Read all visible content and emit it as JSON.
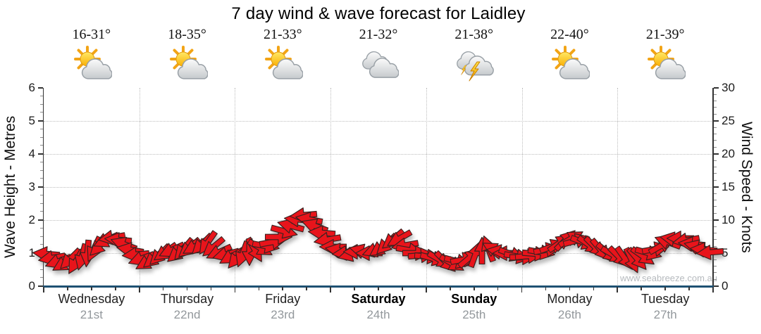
{
  "title": "7 day wind & wave forecast for Laidley",
  "watermark": "www.seabreeze.com.au",
  "days": [
    {
      "name": "Wednesday",
      "date": "21st",
      "temp": "16-31°",
      "icon": "partly-cloudy",
      "bold": false
    },
    {
      "name": "Thursday",
      "date": "22nd",
      "temp": "18-35°",
      "icon": "partly-cloudy",
      "bold": false
    },
    {
      "name": "Friday",
      "date": "23rd",
      "temp": "21-33°",
      "icon": "partly-cloudy",
      "bold": false
    },
    {
      "name": "Saturday",
      "date": "24th",
      "temp": "21-32°",
      "icon": "cloudy",
      "bold": true
    },
    {
      "name": "Sunday",
      "date": "25th",
      "temp": "21-38°",
      "icon": "storm",
      "bold": true
    },
    {
      "name": "Monday",
      "date": "26th",
      "temp": "22-40°",
      "icon": "partly-cloudy",
      "bold": false
    },
    {
      "name": "Tuesday",
      "date": "27th",
      "temp": "21-39°",
      "icon": "partly-cloudy",
      "bold": false
    }
  ],
  "chart_data": {
    "type": "wind-arrow-time-series",
    "x_axis": {
      "unit": "days",
      "range": [
        0,
        7
      ],
      "categories": [
        "Wednesday",
        "Thursday",
        "Friday",
        "Saturday",
        "Sunday",
        "Monday",
        "Tuesday"
      ],
      "dates": [
        "21st",
        "22nd",
        "23rd",
        "24th",
        "25th",
        "26th",
        "27th"
      ],
      "minor_ticks_per_day": 4
    },
    "left_axis": {
      "label": "Wave Height - Metres",
      "min": 0,
      "max": 6,
      "ticks": [
        0,
        1,
        2,
        3,
        4,
        5,
        6
      ],
      "minor_step": 0.25
    },
    "right_axis": {
      "label": "Wind Speed - Knots",
      "min": 0,
      "max": 30,
      "ticks": [
        0,
        5,
        10,
        15,
        20,
        25,
        30
      ],
      "minor_step": 1
    },
    "grid": {
      "horizontal_at_metres": [
        1,
        2,
        3,
        4,
        5
      ],
      "vertical_at_day_boundaries": [
        1,
        2,
        3,
        4,
        5,
        6
      ],
      "style": "dotted"
    },
    "arrows_note": "each point = [time_in_days(0-7), wind_speed_knots, direction_deg(0=E/right,90=S/down)]",
    "arrows": [
      [
        0.02,
        4.9,
        185
      ],
      [
        0.08,
        4.3,
        170
      ],
      [
        0.15,
        3.7,
        160
      ],
      [
        0.21,
        3.4,
        150
      ],
      [
        0.27,
        4.0,
        135
      ],
      [
        0.33,
        3.6,
        120
      ],
      [
        0.4,
        4.4,
        105
      ],
      [
        0.46,
        4.9,
        95
      ],
      [
        0.52,
        5.5,
        115
      ],
      [
        0.58,
        6.1,
        135
      ],
      [
        0.65,
        6.9,
        155
      ],
      [
        0.71,
        7.3,
        170
      ],
      [
        0.77,
        7.0,
        185
      ],
      [
        0.83,
        6.4,
        200
      ],
      [
        0.9,
        5.5,
        190
      ],
      [
        0.96,
        4.8,
        175
      ],
      [
        1.02,
        4.1,
        160
      ],
      [
        1.08,
        3.6,
        150
      ],
      [
        1.15,
        4.1,
        140
      ],
      [
        1.21,
        4.7,
        135
      ],
      [
        1.27,
        5.1,
        145
      ],
      [
        1.33,
        5.4,
        155
      ],
      [
        1.4,
        5.0,
        140
      ],
      [
        1.46,
        5.5,
        130
      ],
      [
        1.52,
        5.7,
        140
      ],
      [
        1.58,
        6.0,
        150
      ],
      [
        1.65,
        6.3,
        135
      ],
      [
        1.71,
        6.5,
        125
      ],
      [
        1.77,
        5.9,
        140
      ],
      [
        1.83,
        5.1,
        155
      ],
      [
        1.9,
        4.8,
        165
      ],
      [
        1.96,
        4.5,
        150
      ],
      [
        2.02,
        4.3,
        130
      ],
      [
        2.08,
        4.8,
        110
      ],
      [
        2.15,
        5.1,
        90
      ],
      [
        2.21,
        5.4,
        60
      ],
      [
        2.27,
        5.7,
        30
      ],
      [
        2.33,
        6.1,
        10
      ],
      [
        2.4,
        6.7,
        350
      ],
      [
        2.46,
        7.4,
        0
      ],
      [
        2.52,
        8.3,
        15
      ],
      [
        2.58,
        9.1,
        195
      ],
      [
        2.65,
        10.1,
        185
      ],
      [
        2.71,
        10.7,
        175
      ],
      [
        2.77,
        10.1,
        190
      ],
      [
        2.83,
        9.1,
        200
      ],
      [
        2.9,
        8.1,
        185
      ],
      [
        2.96,
        7.0,
        170
      ],
      [
        3.02,
        6.0,
        180
      ],
      [
        3.08,
        5.4,
        190
      ],
      [
        3.15,
        5.0,
        175
      ],
      [
        3.21,
        4.8,
        165
      ],
      [
        3.27,
        5.2,
        180
      ],
      [
        3.33,
        5.3,
        195
      ],
      [
        3.4,
        5.0,
        180
      ],
      [
        3.46,
        5.4,
        160
      ],
      [
        3.52,
        5.7,
        145
      ],
      [
        3.58,
        6.3,
        135
      ],
      [
        3.65,
        7.0,
        140
      ],
      [
        3.71,
        7.1,
        150
      ],
      [
        3.77,
        6.2,
        170
      ],
      [
        3.83,
        5.4,
        10
      ],
      [
        3.9,
        5.0,
        0
      ],
      [
        3.96,
        4.7,
        355
      ],
      [
        4.02,
        4.5,
        5
      ],
      [
        4.08,
        4.2,
        15
      ],
      [
        4.15,
        3.9,
        30
      ],
      [
        4.21,
        3.6,
        45
      ],
      [
        4.27,
        3.4,
        30
      ],
      [
        4.33,
        3.7,
        15
      ],
      [
        4.4,
        4.0,
        350
      ],
      [
        4.46,
        4.4,
        320
      ],
      [
        4.52,
        4.9,
        290
      ],
      [
        4.58,
        5.4,
        270
      ],
      [
        4.65,
        5.7,
        250
      ],
      [
        4.71,
        5.5,
        210
      ],
      [
        4.77,
        5.2,
        190
      ],
      [
        4.83,
        5.0,
        180
      ],
      [
        4.9,
        4.8,
        20
      ],
      [
        4.96,
        4.5,
        10
      ],
      [
        5.02,
        4.4,
        0
      ],
      [
        5.08,
        4.6,
        355
      ],
      [
        5.15,
        4.9,
        5
      ],
      [
        5.21,
        5.1,
        10
      ],
      [
        5.27,
        5.5,
        350
      ],
      [
        5.33,
        6.1,
        340
      ],
      [
        5.4,
        6.6,
        325
      ],
      [
        5.46,
        7.0,
        315
      ],
      [
        5.52,
        7.2,
        330
      ],
      [
        5.58,
        6.9,
        345
      ],
      [
        5.65,
        6.6,
        20
      ],
      [
        5.71,
        6.2,
        35
      ],
      [
        5.77,
        5.8,
        45
      ],
      [
        5.83,
        5.4,
        50
      ],
      [
        5.9,
        5.0,
        40
      ],
      [
        5.96,
        4.7,
        30
      ],
      [
        6.02,
        4.4,
        45
      ],
      [
        6.08,
        4.1,
        55
      ],
      [
        6.15,
        3.8,
        65
      ],
      [
        6.21,
        4.0,
        50
      ],
      [
        6.27,
        4.5,
        35
      ],
      [
        6.33,
        5.0,
        15
      ],
      [
        6.4,
        5.6,
        350
      ],
      [
        6.46,
        6.2,
        330
      ],
      [
        6.52,
        6.7,
        200
      ],
      [
        6.58,
        7.1,
        190
      ],
      [
        6.65,
        7.2,
        180
      ],
      [
        6.71,
        6.9,
        170
      ],
      [
        6.77,
        6.4,
        185
      ],
      [
        6.83,
        6.0,
        195
      ],
      [
        6.9,
        5.5,
        185
      ],
      [
        6.96,
        5.1,
        175
      ]
    ]
  },
  "colors": {
    "arrow_fill": "#e8141b",
    "arrow_outline": "#3a2220",
    "baseline": "#1e5173",
    "grid": "#bdbdbd",
    "date_text": "#93989c",
    "watermark_text": "#b6babe",
    "sun": "#f9b006",
    "cloud": "#c6cacd",
    "bolt": "#f2a416"
  }
}
